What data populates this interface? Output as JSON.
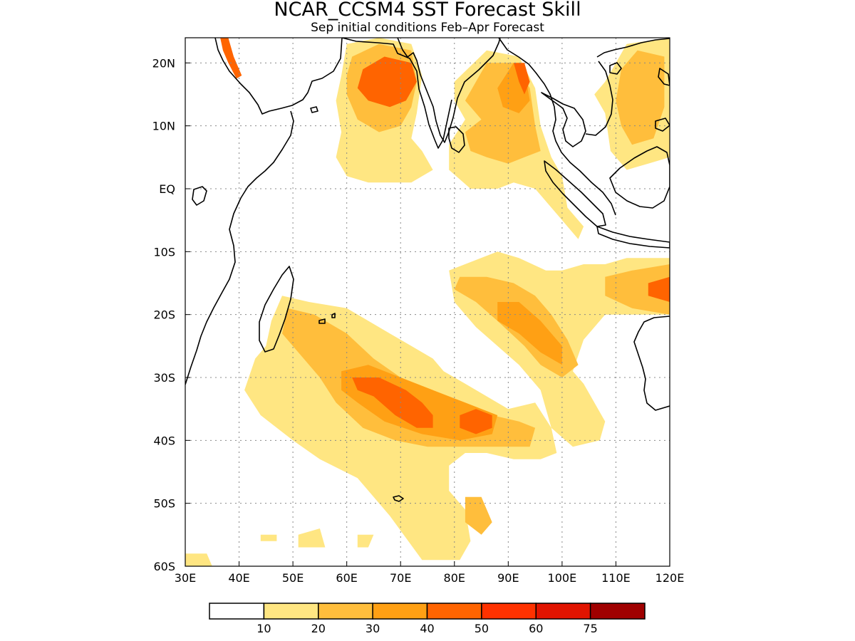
{
  "title": "NCAR_CCSM4 SST Forecast Skill",
  "subtitle": "Sep initial conditions  Feb–Apr Forecast",
  "map": {
    "lon_range": [
      30,
      120
    ],
    "lat_range": [
      -60,
      24
    ],
    "lon_ticks": [
      {
        "value": 30,
        "label": "30E"
      },
      {
        "value": 40,
        "label": "40E"
      },
      {
        "value": 50,
        "label": "50E"
      },
      {
        "value": 60,
        "label": "60E"
      },
      {
        "value": 70,
        "label": "70E"
      },
      {
        "value": 80,
        "label": "80E"
      },
      {
        "value": 90,
        "label": "90E"
      },
      {
        "value": 100,
        "label": "100E"
      },
      {
        "value": 110,
        "label": "110E"
      },
      {
        "value": 120,
        "label": "120E"
      }
    ],
    "lat_ticks": [
      {
        "value": 20,
        "label": "20N"
      },
      {
        "value": 10,
        "label": "10N"
      },
      {
        "value": 0,
        "label": "EQ"
      },
      {
        "value": -10,
        "label": "10S"
      },
      {
        "value": -20,
        "label": "20S"
      },
      {
        "value": -30,
        "label": "30S"
      },
      {
        "value": -40,
        "label": "40S"
      },
      {
        "value": -50,
        "label": "50S"
      },
      {
        "value": -60,
        "label": "60S"
      }
    ]
  },
  "colorbar": {
    "colors": [
      "#ffffff",
      "#ffe682",
      "#ffbe3c",
      "#ffa014",
      "#ff6400",
      "#ff3200",
      "#e11400",
      "#a00000"
    ],
    "labels": [
      "10",
      "20",
      "30",
      "40",
      "50",
      "60",
      "75"
    ]
  },
  "skill_regions": [
    {
      "name": "arabian-sea",
      "level": 1,
      "points": [
        [
          60,
          23
        ],
        [
          66,
          24
        ],
        [
          72,
          23
        ],
        [
          74,
          18
        ],
        [
          73,
          12
        ],
        [
          72,
          8
        ],
        [
          74,
          6
        ],
        [
          76,
          3
        ],
        [
          72,
          1
        ],
        [
          64,
          1
        ],
        [
          60,
          2
        ],
        [
          58,
          5
        ],
        [
          59,
          9
        ],
        [
          58,
          14
        ],
        [
          59,
          18
        ]
      ]
    },
    {
      "name": "arabian-sea",
      "level": 2,
      "points": [
        [
          61,
          21
        ],
        [
          66,
          23
        ],
        [
          72,
          22
        ],
        [
          73,
          17
        ],
        [
          72,
          13
        ],
        [
          70,
          10
        ],
        [
          66,
          9
        ],
        [
          62,
          11
        ],
        [
          60,
          15
        ],
        [
          60,
          18
        ]
      ]
    },
    {
      "name": "arabian-sea",
      "level": 4,
      "points": [
        [
          63,
          19
        ],
        [
          67,
          21
        ],
        [
          72,
          20
        ],
        [
          73,
          17
        ],
        [
          71,
          14
        ],
        [
          68,
          13
        ],
        [
          64,
          14
        ],
        [
          62,
          16
        ]
      ]
    },
    {
      "name": "red-sea",
      "level": 4,
      "points": [
        [
          36.5,
          24
        ],
        [
          38,
          24
        ],
        [
          39,
          21
        ],
        [
          40.5,
          18
        ],
        [
          39.5,
          17.5
        ],
        [
          38,
          20
        ],
        [
          37,
          22
        ]
      ]
    },
    {
      "name": "bay-of-bengal",
      "level": 1,
      "points": [
        [
          80,
          17
        ],
        [
          86,
          22
        ],
        [
          92,
          21
        ],
        [
          95,
          16
        ],
        [
          96,
          10
        ],
        [
          98,
          5
        ],
        [
          100,
          2
        ],
        [
          101,
          -3
        ],
        [
          104,
          -6
        ],
        [
          103,
          -8
        ],
        [
          99,
          -4
        ],
        [
          95,
          0
        ],
        [
          91,
          1
        ],
        [
          88,
          0
        ],
        [
          83,
          0
        ],
        [
          79,
          3
        ],
        [
          79,
          7
        ],
        [
          82,
          11
        ],
        [
          80,
          14
        ]
      ]
    },
    {
      "name": "bay-of-bengal",
      "level": 2,
      "points": [
        [
          82,
          14
        ],
        [
          86,
          20
        ],
        [
          91,
          20
        ],
        [
          94,
          16
        ],
        [
          95,
          10
        ],
        [
          96,
          6
        ],
        [
          93,
          5
        ],
        [
          90,
          4
        ],
        [
          86,
          5
        ],
        [
          83,
          6
        ],
        [
          82,
          9
        ],
        [
          85,
          11
        ]
      ]
    },
    {
      "name": "bay-of-bengal",
      "level": 3,
      "points": [
        [
          88,
          16
        ],
        [
          91,
          20
        ],
        [
          93,
          19
        ],
        [
          94,
          14
        ],
        [
          92,
          12
        ],
        [
          89,
          13
        ]
      ]
    },
    {
      "name": "bay-of-bengal",
      "level": 4,
      "points": [
        [
          91,
          20
        ],
        [
          93,
          20
        ],
        [
          94,
          17
        ],
        [
          93,
          15
        ],
        [
          92,
          17
        ]
      ]
    },
    {
      "name": "south-china-sea",
      "level": 1,
      "points": [
        [
          108,
          17
        ],
        [
          112,
          23
        ],
        [
          120,
          24
        ],
        [
          120,
          5
        ],
        [
          116,
          4
        ],
        [
          112,
          3
        ],
        [
          109,
          6
        ],
        [
          108,
          12
        ],
        [
          106,
          15
        ]
      ]
    },
    {
      "name": "south-china-sea",
      "level": 2,
      "points": [
        [
          111,
          19
        ],
        [
          114,
          22
        ],
        [
          119,
          21
        ],
        [
          119,
          13
        ],
        [
          117,
          8
        ],
        [
          113,
          7
        ],
        [
          111,
          10
        ],
        [
          110,
          14
        ]
      ]
    },
    {
      "name": "south-indian-west",
      "level": 1,
      "points": [
        [
          48,
          -17
        ],
        [
          53,
          -18
        ],
        [
          60,
          -19
        ],
        [
          64,
          -21
        ],
        [
          68,
          -23
        ],
        [
          72,
          -25
        ],
        [
          76,
          -27
        ],
        [
          78,
          -29
        ],
        [
          82,
          -31
        ],
        [
          86,
          -33
        ],
        [
          90,
          -35
        ],
        [
          95,
          -34
        ],
        [
          98,
          -38
        ],
        [
          99,
          -42
        ],
        [
          96,
          -43
        ],
        [
          91,
          -43
        ],
        [
          86,
          -42
        ],
        [
          82,
          -42
        ],
        [
          79,
          -44
        ],
        [
          79,
          -48
        ],
        [
          82,
          -51
        ],
        [
          83,
          -56
        ],
        [
          81,
          -59
        ],
        [
          74,
          -59
        ],
        [
          68,
          -52
        ],
        [
          62,
          -46
        ],
        [
          55,
          -43
        ],
        [
          50,
          -40
        ],
        [
          44,
          -36
        ],
        [
          41,
          -32
        ],
        [
          43,
          -27
        ],
        [
          45,
          -25
        ],
        [
          46,
          -21
        ]
      ]
    },
    {
      "name": "south-indian-west",
      "level": 2,
      "points": [
        [
          49,
          -19
        ],
        [
          54,
          -20
        ],
        [
          60,
          -23
        ],
        [
          65,
          -27
        ],
        [
          70,
          -30
        ],
        [
          76,
          -32
        ],
        [
          82,
          -35
        ],
        [
          87,
          -36
        ],
        [
          92,
          -37
        ],
        [
          95,
          -38
        ],
        [
          94,
          -41
        ],
        [
          88,
          -41
        ],
        [
          82,
          -41
        ],
        [
          75,
          -41
        ],
        [
          69,
          -40
        ],
        [
          63,
          -38
        ],
        [
          58,
          -34
        ],
        [
          55,
          -30
        ],
        [
          51,
          -26
        ],
        [
          48,
          -23
        ]
      ]
    },
    {
      "name": "south-indian-west",
      "level": 3,
      "points": [
        [
          59,
          -29
        ],
        [
          64,
          -28
        ],
        [
          70,
          -30
        ],
        [
          76,
          -32
        ],
        [
          82,
          -34
        ],
        [
          88,
          -36
        ],
        [
          87,
          -39
        ],
        [
          81,
          -40
        ],
        [
          74,
          -39
        ],
        [
          67,
          -37
        ],
        [
          62,
          -34
        ],
        [
          59,
          -32
        ]
      ]
    },
    {
      "name": "south-indian-west",
      "level": 4,
      "points": [
        [
          61,
          -30
        ],
        [
          66,
          -30
        ],
        [
          71,
          -32
        ],
        [
          74,
          -34
        ],
        [
          76,
          -36
        ],
        [
          76,
          -38
        ],
        [
          73,
          -38
        ],
        [
          69,
          -36
        ],
        [
          65,
          -33
        ],
        [
          62,
          -32
        ]
      ]
    },
    {
      "name": "south-indian-west",
      "level": 4,
      "points": [
        [
          81,
          -36
        ],
        [
          84,
          -35
        ],
        [
          87,
          -36
        ],
        [
          87,
          -38
        ],
        [
          84,
          -39
        ],
        [
          81,
          -38
        ]
      ]
    },
    {
      "name": "south-indian-west",
      "level": 2,
      "points": [
        [
          82,
          -49
        ],
        [
          85,
          -49
        ],
        [
          87,
          -53
        ],
        [
          85,
          -55
        ],
        [
          82,
          -53
        ]
      ]
    },
    {
      "name": "south-indian-east",
      "level": 1,
      "points": [
        [
          88,
          -10
        ],
        [
          92,
          -11
        ],
        [
          97,
          -13
        ],
        [
          100,
          -13
        ],
        [
          104,
          -12
        ],
        [
          108,
          -12
        ],
        [
          112,
          -11
        ],
        [
          118,
          -11
        ],
        [
          120,
          -11
        ],
        [
          120,
          -20
        ],
        [
          114,
          -20
        ],
        [
          108,
          -20
        ],
        [
          104,
          -24
        ],
        [
          102,
          -29
        ],
        [
          104,
          -31
        ],
        [
          108,
          -37
        ],
        [
          107,
          -40
        ],
        [
          102,
          -41
        ],
        [
          98,
          -38
        ],
        [
          96,
          -32
        ],
        [
          92,
          -28
        ],
        [
          88,
          -25
        ],
        [
          84,
          -22
        ],
        [
          80,
          -18
        ],
        [
          79,
          -13
        ]
      ]
    },
    {
      "name": "south-indian-east",
      "level": 2,
      "points": [
        [
          81,
          -14
        ],
        [
          86,
          -14
        ],
        [
          91,
          -15
        ],
        [
          95,
          -17
        ],
        [
          98,
          -20
        ],
        [
          101,
          -24
        ],
        [
          103,
          -28
        ],
        [
          100,
          -30
        ],
        [
          96,
          -28
        ],
        [
          93,
          -25
        ],
        [
          88,
          -21
        ],
        [
          84,
          -18
        ],
        [
          80,
          -16
        ]
      ]
    },
    {
      "name": "south-indian-east",
      "level": 2,
      "points": [
        [
          108,
          -14
        ],
        [
          113,
          -13
        ],
        [
          120,
          -12
        ],
        [
          120,
          -20
        ],
        [
          113,
          -19
        ],
        [
          108,
          -17
        ]
      ]
    },
    {
      "name": "south-indian-east",
      "level": 3,
      "points": [
        [
          88,
          -18
        ],
        [
          92,
          -18
        ],
        [
          96,
          -21
        ],
        [
          100,
          -25
        ],
        [
          100,
          -28
        ],
        [
          96,
          -26
        ],
        [
          92,
          -23
        ],
        [
          88,
          -21
        ]
      ]
    },
    {
      "name": "south-indian-east",
      "level": 4,
      "points": [
        [
          116,
          -15
        ],
        [
          120,
          -14
        ],
        [
          120,
          -18
        ],
        [
          116,
          -17
        ]
      ]
    },
    {
      "name": "southern-ocean",
      "level": 1,
      "points": [
        [
          30,
          -58
        ],
        [
          34,
          -58
        ],
        [
          35,
          -60
        ],
        [
          30,
          -60
        ]
      ]
    },
    {
      "name": "southern-ocean",
      "level": 1,
      "points": [
        [
          51,
          -55
        ],
        [
          55,
          -54
        ],
        [
          56,
          -57
        ],
        [
          51,
          -57
        ]
      ]
    },
    {
      "name": "southern-ocean",
      "level": 1,
      "points": [
        [
          62,
          -55
        ],
        [
          65,
          -55
        ],
        [
          64,
          -57
        ],
        [
          62,
          -57
        ]
      ]
    },
    {
      "name": "southern-ocean",
      "level": 1,
      "points": [
        [
          44,
          -55
        ],
        [
          47,
          -55
        ],
        [
          47,
          -56
        ],
        [
          44,
          -56
        ]
      ]
    }
  ]
}
